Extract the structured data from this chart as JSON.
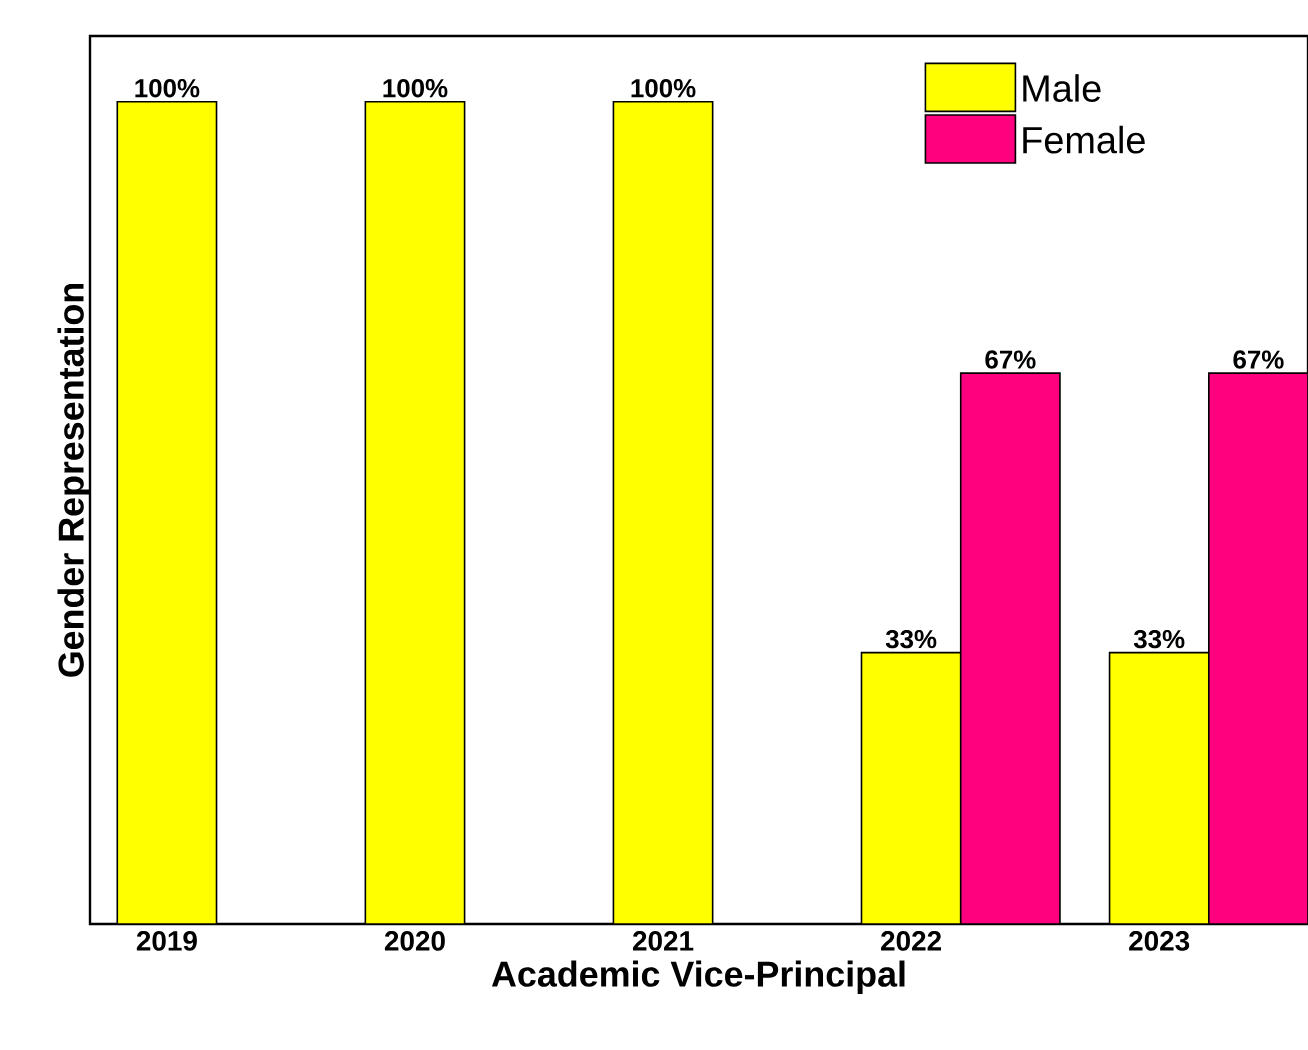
{
  "chart_data": {
    "type": "bar",
    "xlabel": "Academic Vice-Principal",
    "ylabel": "Gender Representation",
    "categories": [
      "2019",
      "2020",
      "2021",
      "2022",
      "2023"
    ],
    "series": [
      {
        "name": "Male",
        "color": "#ffff00",
        "values": [
          100,
          100,
          100,
          33,
          33
        ],
        "value_labels": [
          "100%",
          "100%",
          "100%",
          "33%",
          "33%"
        ]
      },
      {
        "name": "Female",
        "color": "#ff007f",
        "values": [
          null,
          null,
          null,
          67,
          67
        ],
        "value_labels": [
          null,
          null,
          null,
          "67%",
          "67%"
        ]
      }
    ],
    "ylim": [
      0,
      108
    ],
    "tick_labels": "x",
    "legend": "top right",
    "grid": false
  }
}
